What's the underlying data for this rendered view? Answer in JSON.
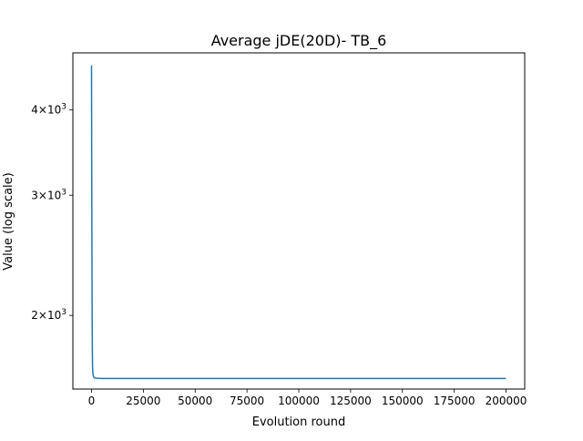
{
  "chart_data": {
    "type": "line",
    "title": "Average jDE(20D)- TB_6",
    "xlabel": "Evolution round",
    "ylabel": "Value (log scale)",
    "x_scale": "linear",
    "y_scale": "log",
    "xlim": [
      -9000,
      209000
    ],
    "ylim": [
      1560,
      4850
    ],
    "grid": false,
    "x_ticks": [
      {
        "value": 0,
        "label": "0"
      },
      {
        "value": 25000,
        "label": "25000"
      },
      {
        "value": 50000,
        "label": "50000"
      },
      {
        "value": 75000,
        "label": "75000"
      },
      {
        "value": 100000,
        "label": "100000"
      },
      {
        "value": 125000,
        "label": "125000"
      },
      {
        "value": 150000,
        "label": "150000"
      },
      {
        "value": 175000,
        "label": "175000"
      },
      {
        "value": 200000,
        "label": "200000"
      }
    ],
    "y_ticks": [
      {
        "value": 2000,
        "mantissa": "2",
        "base": "10",
        "exp": "3"
      },
      {
        "value": 3000,
        "mantissa": "3",
        "base": "10",
        "exp": "3"
      },
      {
        "value": 4000,
        "mantissa": "4",
        "base": "10",
        "exp": "3"
      }
    ],
    "series": [
      {
        "color": "#1f77b4",
        "x": [
          0,
          100,
          200,
          300,
          400,
          500,
          700,
          1000,
          1500,
          2500,
          5000,
          200000
        ],
        "y": [
          4650,
          3300,
          2500,
          2000,
          1780,
          1680,
          1640,
          1625,
          1620,
          1618,
          1617,
          1617
        ]
      }
    ]
  }
}
